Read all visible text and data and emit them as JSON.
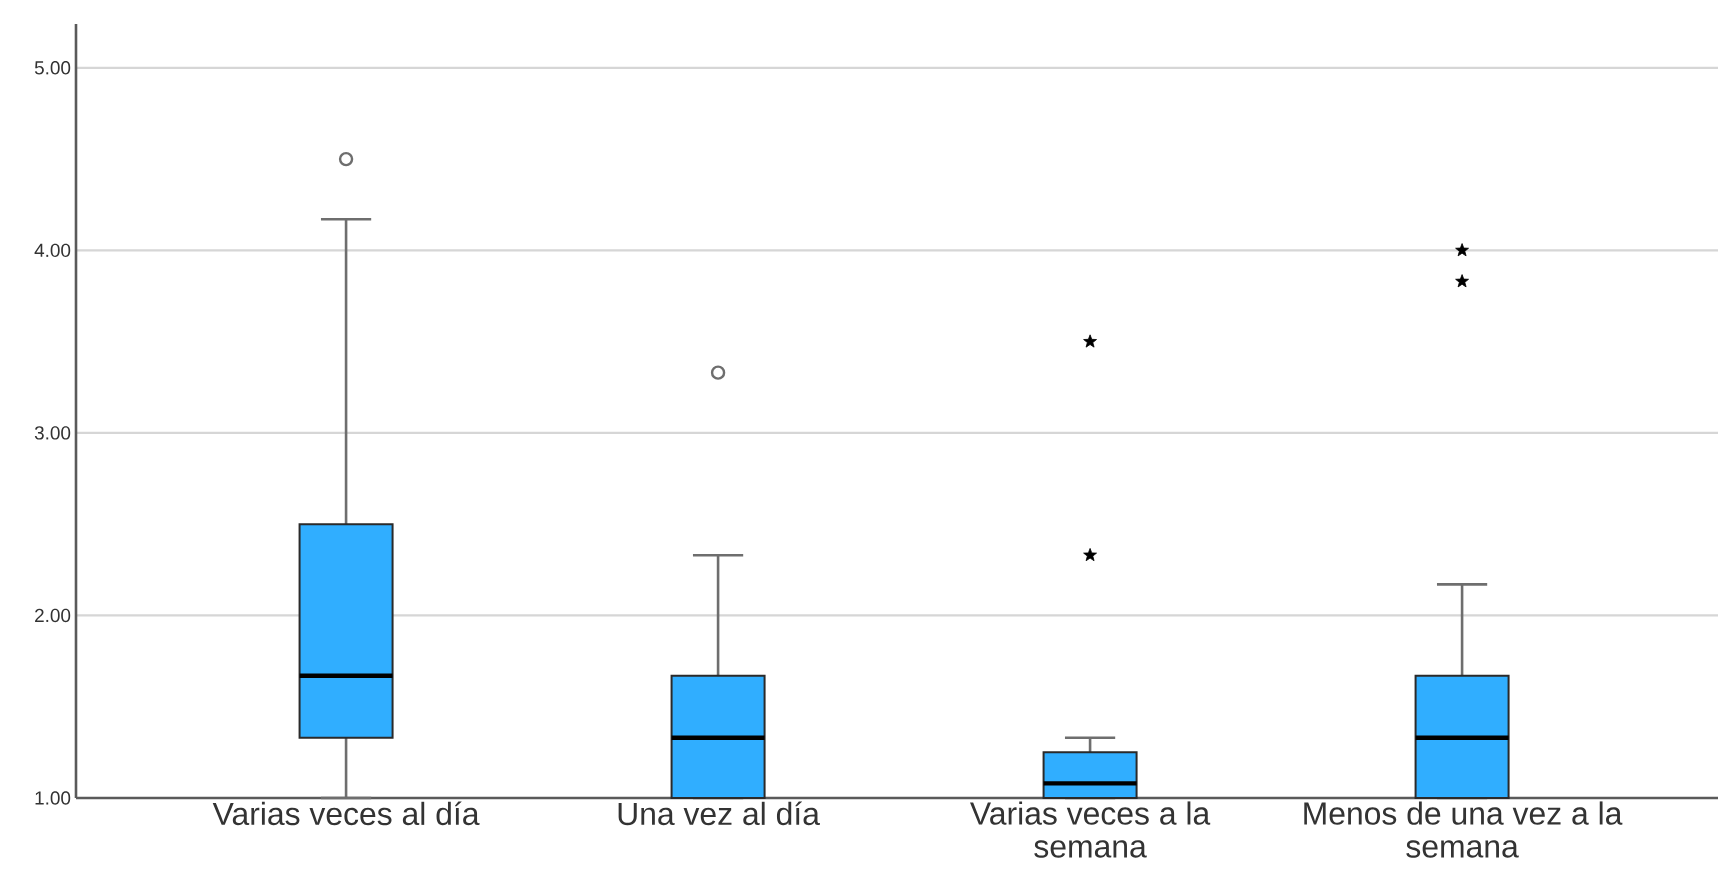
{
  "chart_data": {
    "type": "box",
    "categories": [
      "Varias veces al día",
      "Una vez al día",
      "Varias veces a la semana",
      "Menos de una vez a la semana"
    ],
    "series": [
      {
        "type": "box",
        "color": "#30aeff",
        "marker": "circle",
        "boxes": [
          {
            "low": 1.0,
            "q1": 1.33,
            "median": 1.67,
            "q3": 2.5,
            "high": 4.17,
            "outliers": [
              4.5
            ]
          },
          {
            "low": 1.0,
            "q1": 1.0,
            "median": 1.33,
            "q3": 1.67,
            "high": 2.33,
            "outliers": [
              3.33
            ]
          },
          {
            "low": 1.0,
            "q1": 1.0,
            "median": 1.08,
            "q3": 1.25,
            "high": 1.33
          },
          {
            "low": 1.0,
            "q1": 1.0,
            "median": 1.33,
            "q3": 1.67,
            "high": 2.17
          }
        ]
      },
      {
        "type": "scatter",
        "marker": "star",
        "color": "#000000",
        "x": [
          "Varias veces a la semana",
          "Varias veces a la semana",
          "Menos de una vez a la semana",
          "Menos de una vez a la semana"
        ],
        "values": [
          3.5,
          2.33,
          4.0,
          3.83
        ]
      }
    ],
    "ylim": [
      1,
      5.24
    ],
    "yticks": [
      {
        "value": 1,
        "label": "1.00"
      },
      {
        "value": 2,
        "label": "2.00"
      },
      {
        "value": 3,
        "label": "3.00"
      },
      {
        "value": 4,
        "label": "4.00"
      },
      {
        "value": 5,
        "label": "5.00"
      }
    ],
    "grid": "y"
  }
}
